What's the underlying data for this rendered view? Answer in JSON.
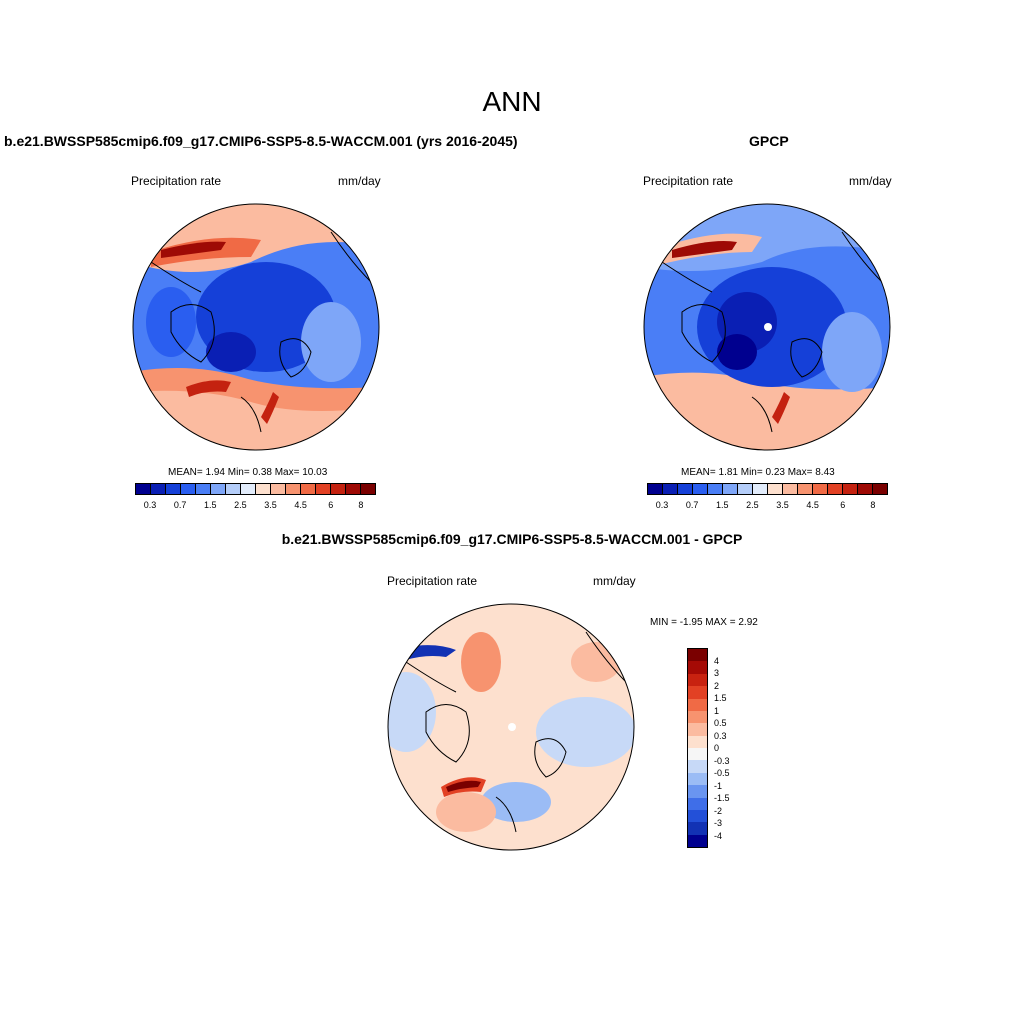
{
  "season": "ANN",
  "panels": [
    {
      "title": "b.e21.BWSSP585cmip6.f09_g17.CMIP6-SSP5-8.5-WACCM.001 (yrs 2016-2045)",
      "variable": "Precipitation rate",
      "units": "mm/day",
      "stats": "MEAN=   1.94  Min=   0.38  Max=  10.03"
    },
    {
      "title": "GPCP",
      "variable": "Precipitation rate",
      "units": "mm/day",
      "stats": "MEAN=   1.81  Min=   0.23  Max=   8.43"
    },
    {
      "title": "b.e21.BWSSP585cmip6.f09_g17.CMIP6-SSP5-8.5-WACCM.001 - GPCP",
      "variable": "Precipitation rate",
      "units": "mm/day",
      "stats": "MIN =  -1.95 MAX =   2.92"
    }
  ],
  "colorbars": {
    "abs": {
      "colors": [
        "#00008f",
        "#0a1fb4",
        "#1540d8",
        "#2a5ef0",
        "#4a7ef6",
        "#7ea6f8",
        "#b4cdf9",
        "#e2ecfb",
        "#fde0ce",
        "#fbbba0",
        "#f7936f",
        "#f06a45",
        "#e24124",
        "#c42210",
        "#9e0a05",
        "#7a0000"
      ],
      "ticks": [
        "0.3",
        "0.7",
        "1.5",
        "2.5",
        "3.5",
        "4.5",
        "6",
        "8"
      ]
    },
    "diff": {
      "colors": [
        "#7a0000",
        "#a50a05",
        "#c82210",
        "#e24124",
        "#f06a45",
        "#f7936f",
        "#fbbba0",
        "#fde0ce",
        "#f6f6f6",
        "#c7d9f7",
        "#9bbcf5",
        "#6a95f0",
        "#3f6ee8",
        "#2350d8",
        "#1232b4",
        "#00008f"
      ],
      "ticks": [
        "4",
        "3",
        "2",
        "1.5",
        "1",
        "0.5",
        "0.3",
        "0",
        "-0.3",
        "-0.5",
        "-1",
        "-1.5",
        "-2",
        "-3",
        "-4"
      ]
    }
  }
}
